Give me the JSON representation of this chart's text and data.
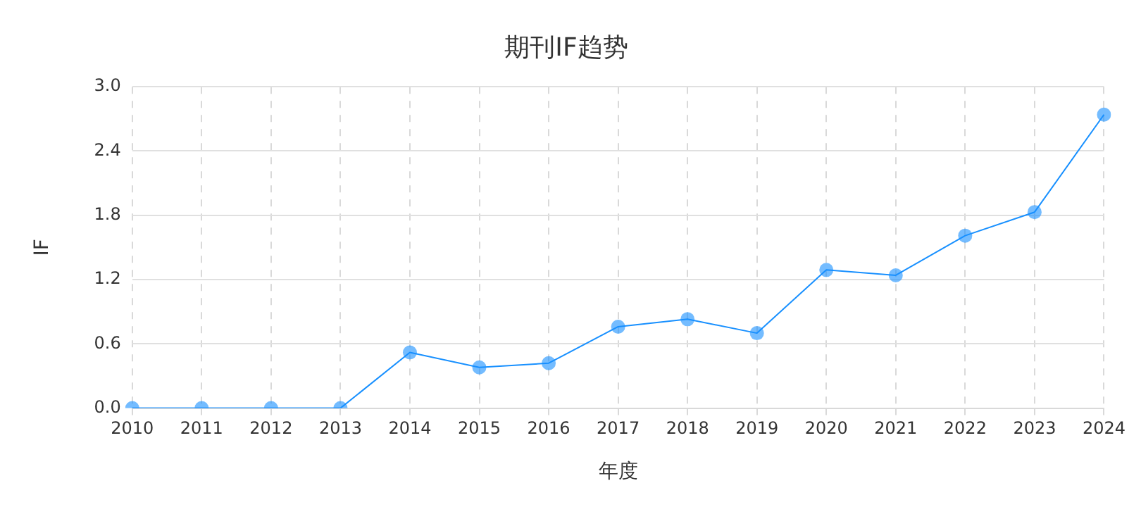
{
  "chart_data": {
    "type": "line",
    "title": "期刊IF趋势",
    "xlabel": "年度",
    "ylabel": "IF",
    "categories": [
      "2010",
      "2011",
      "2012",
      "2013",
      "2014",
      "2015",
      "2016",
      "2017",
      "2018",
      "2019",
      "2020",
      "2021",
      "2022",
      "2023",
      "2024"
    ],
    "series": [
      {
        "color": "#1890ff",
        "values": [
          0,
          0,
          0,
          0,
          0.52,
          0.38,
          0.42,
          0.76,
          0.83,
          0.7,
          1.29,
          1.24,
          1.61,
          1.83,
          2.74
        ]
      }
    ],
    "ylim": [
      0,
      3.0
    ],
    "yticks": [
      {
        "value": 0,
        "label": "0.0"
      },
      {
        "value": 0.6,
        "label": "0.6"
      },
      {
        "value": 1.2,
        "label": "1.2"
      },
      {
        "value": 1.8,
        "label": "1.8"
      },
      {
        "value": 2.4,
        "label": "2.4"
      },
      {
        "value": 3.0,
        "label": "3.0"
      }
    ],
    "grid": true,
    "legend": false,
    "marker": "circle",
    "line_style": "solid"
  }
}
